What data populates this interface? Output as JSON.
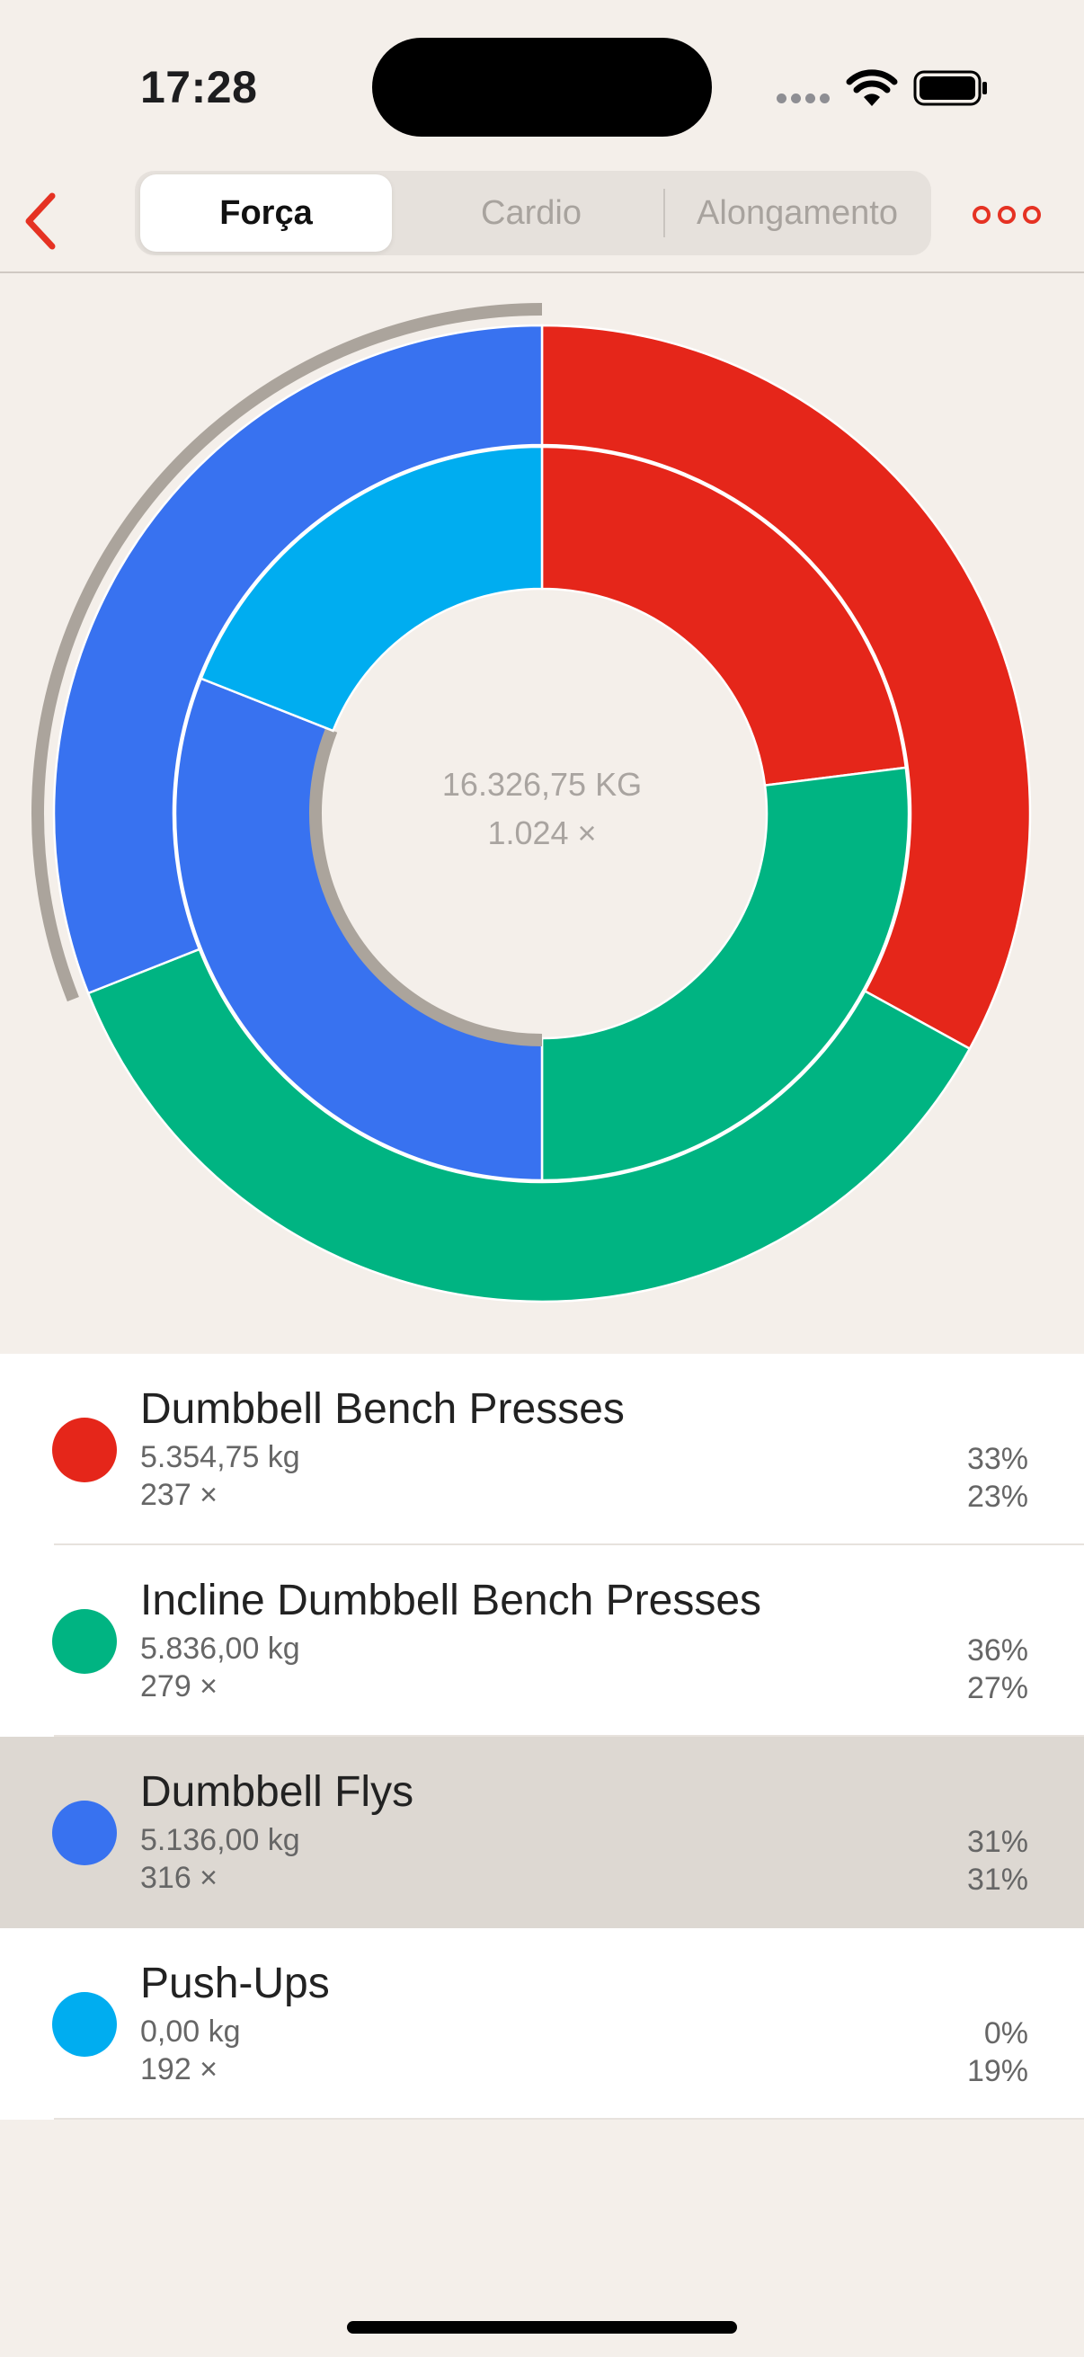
{
  "status": {
    "time": "17:28"
  },
  "tabs": [
    {
      "label": "Força",
      "active": true
    },
    {
      "label": "Cardio",
      "active": false
    },
    {
      "label": "Alongamento",
      "active": false
    }
  ],
  "summary": {
    "total_weight": "16.326,75 KG",
    "total_reps": "1.024 ×"
  },
  "colors": {
    "accent": "#e53223",
    "red": "#e5261a",
    "green": "#00b482",
    "blue": "#3872f0",
    "cyan": "#00adf0",
    "highlight_arc": "#aba49c"
  },
  "chart_data": {
    "type": "pie",
    "rings": [
      {
        "ring": "outer",
        "metric": "weight",
        "values": [
          33,
          36,
          31,
          0
        ]
      },
      {
        "ring": "inner",
        "metric": "reps",
        "values": [
          23,
          27,
          31,
          19
        ]
      }
    ],
    "categories": [
      "Dumbbell Bench Presses",
      "Incline Dumbbell Bench Presses",
      "Dumbbell Flys",
      "Push-Ups"
    ],
    "highlighted": "Dumbbell Flys"
  },
  "exercises": [
    {
      "name": "Dumbbell Bench Presses",
      "weight": "5.354,75 kg",
      "reps": "237 ×",
      "weight_pct": "33%",
      "reps_pct": "23%",
      "color": "#e5261a",
      "selected": false
    },
    {
      "name": "Incline Dumbbell Bench Presses",
      "weight": "5.836,00 kg",
      "reps": "279 ×",
      "weight_pct": "36%",
      "reps_pct": "27%",
      "color": "#00b482",
      "selected": false
    },
    {
      "name": "Dumbbell Flys",
      "weight": "5.136,00 kg",
      "reps": "316 ×",
      "weight_pct": "31%",
      "reps_pct": "31%",
      "color": "#3872f0",
      "selected": true
    },
    {
      "name": "Push-Ups",
      "weight": "0,00 kg",
      "reps": "192 ×",
      "weight_pct": "0%",
      "reps_pct": "19%",
      "color": "#00adf0",
      "selected": false
    }
  ]
}
